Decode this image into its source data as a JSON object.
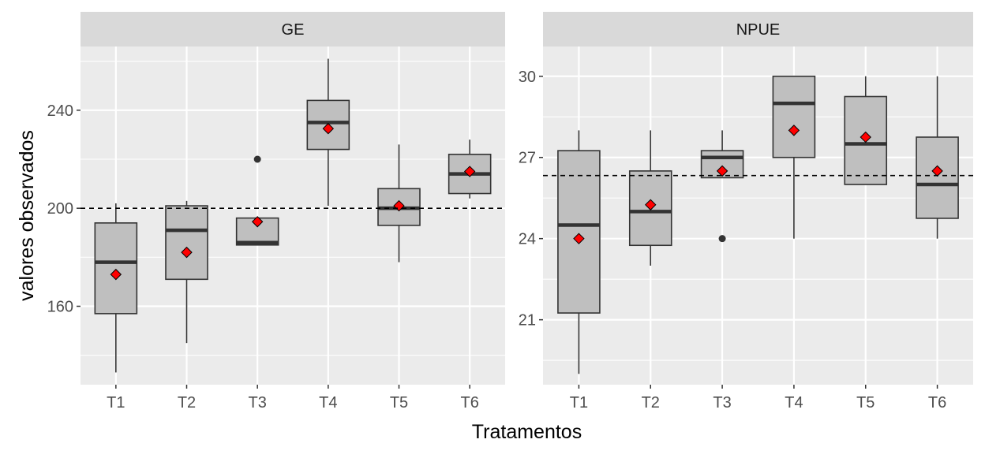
{
  "chart_data": {
    "type": "boxplot",
    "layout": "facets side by side, shared x axis categories, independent y axes",
    "xlabel": "Tratamentos",
    "ylabel": "valores observados",
    "categories": [
      "T1",
      "T2",
      "T3",
      "T4",
      "T5",
      "T6"
    ],
    "colors": {
      "panel_bg": "#ebebeb",
      "strip_bg": "#d9d9d9",
      "grid": "#ffffff",
      "box_fill": "#bfbfbf",
      "box_line": "#333333",
      "mean_marker": "#ff0000",
      "reference_line": "#000000"
    },
    "facets": [
      {
        "name": "GE",
        "ylim": [
          128,
          266
        ],
        "yticks": [
          160,
          200,
          240
        ],
        "reference_line": 200,
        "boxes": [
          {
            "category": "T1",
            "lower_whisker": 133,
            "q1": 157,
            "median": 178,
            "q3": 194,
            "upper_whisker": 202,
            "mean": 173,
            "outliers": []
          },
          {
            "category": "T2",
            "lower_whisker": 145,
            "q1": 171,
            "median": 191,
            "q3": 201,
            "upper_whisker": 203,
            "mean": 182,
            "outliers": []
          },
          {
            "category": "T3",
            "lower_whisker": 185,
            "q1": 185,
            "median": 186,
            "q3": 196,
            "upper_whisker": 196,
            "mean": 194.5,
            "outliers": [
              220
            ]
          },
          {
            "category": "T4",
            "lower_whisker": 201,
            "q1": 224,
            "median": 235,
            "q3": 244,
            "upper_whisker": 261,
            "mean": 232.5,
            "outliers": []
          },
          {
            "category": "T5",
            "lower_whisker": 178,
            "q1": 193,
            "median": 200,
            "q3": 208,
            "upper_whisker": 226,
            "mean": 201,
            "outliers": []
          },
          {
            "category": "T6",
            "lower_whisker": 204,
            "q1": 206,
            "median": 214,
            "q3": 222,
            "upper_whisker": 228,
            "mean": 215,
            "outliers": []
          }
        ]
      },
      {
        "name": "NPUE",
        "ylim": [
          18.6,
          31.1
        ],
        "yticks": [
          21,
          24,
          27,
          30
        ],
        "reference_line": 26.33,
        "boxes": [
          {
            "category": "T1",
            "lower_whisker": 19,
            "q1": 21.25,
            "median": 24.5,
            "q3": 27.25,
            "upper_whisker": 28,
            "mean": 24,
            "outliers": []
          },
          {
            "category": "T2",
            "lower_whisker": 23,
            "q1": 23.75,
            "median": 25,
            "q3": 26.5,
            "upper_whisker": 28,
            "mean": 25.25,
            "outliers": []
          },
          {
            "category": "T3",
            "lower_whisker": 26.25,
            "q1": 26.25,
            "median": 27,
            "q3": 27.25,
            "upper_whisker": 28,
            "mean": 26.5,
            "outliers": [
              24
            ]
          },
          {
            "category": "T4",
            "lower_whisker": 24,
            "q1": 27,
            "median": 29,
            "q3": 30,
            "upper_whisker": 30,
            "mean": 28,
            "outliers": []
          },
          {
            "category": "T5",
            "lower_whisker": 26,
            "q1": 26,
            "median": 27.5,
            "q3": 29.25,
            "upper_whisker": 30,
            "mean": 27.75,
            "outliers": []
          },
          {
            "category": "T6",
            "lower_whisker": 24,
            "q1": 24.75,
            "median": 26,
            "q3": 27.75,
            "upper_whisker": 30,
            "mean": 26.5,
            "outliers": []
          }
        ]
      }
    ]
  }
}
